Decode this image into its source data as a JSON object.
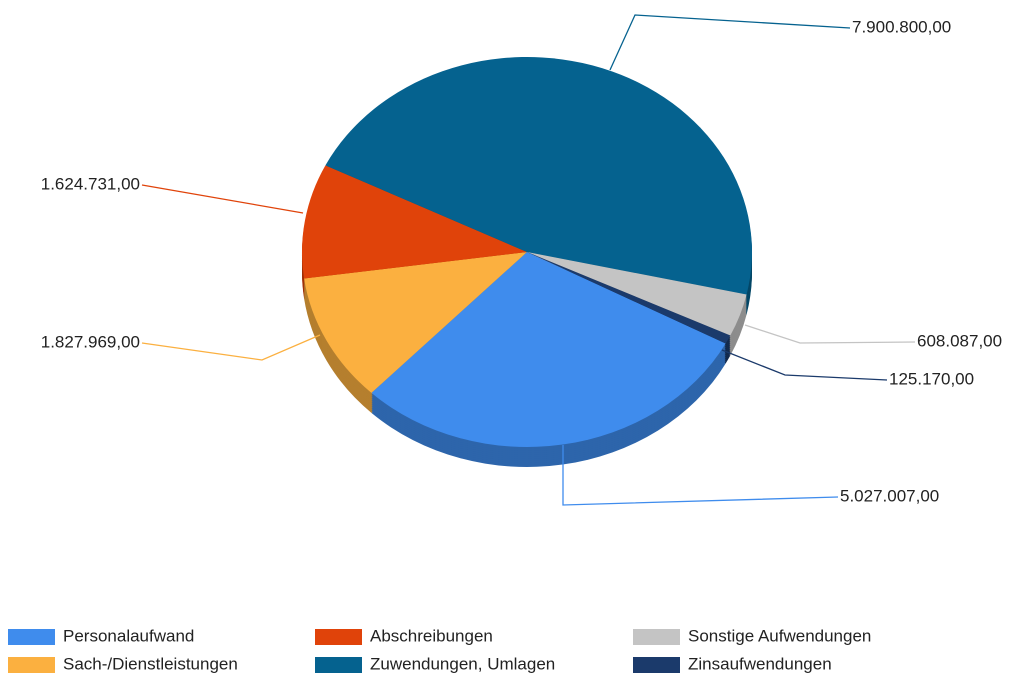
{
  "chart_data": {
    "type": "pie",
    "categories": [
      "Personalaufwand",
      "Sach-/Dienstleistungen",
      "Abschreibungen",
      "Zuwendungen, Umlagen",
      "Sonstige Aufwendungen",
      "Zinsaufwendungen"
    ],
    "values": [
      5027007,
      1827969,
      1624731,
      7900800,
      608087,
      125170
    ],
    "value_labels": [
      "5.027.007,00",
      "1.827.969,00",
      "1.624.731,00",
      "7.900.800,00",
      "608.087,00",
      "125.170,00"
    ],
    "colors": [
      "#3f8ced",
      "#fbb040",
      "#e0430a",
      "#05628f",
      "#c4c4c4",
      "#1b3a6b"
    ],
    "legend": "bottom"
  }
}
